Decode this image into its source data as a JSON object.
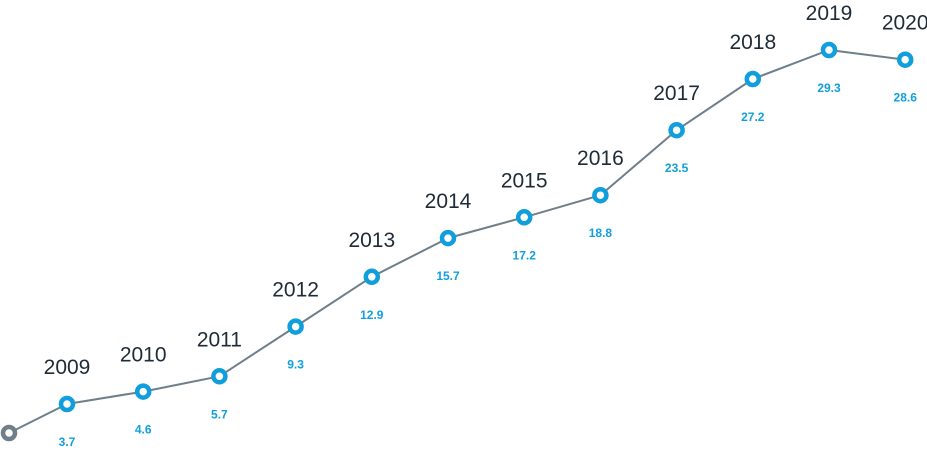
{
  "chart_data": {
    "type": "line",
    "title": "",
    "xlabel": "",
    "ylabel": "",
    "grid": false,
    "legend": "none",
    "x": [
      "2009",
      "2010",
      "2011",
      "2012",
      "2013",
      "2014",
      "2015",
      "2016",
      "2017",
      "2018",
      "2019",
      "2020"
    ],
    "values": [
      3.7,
      4.6,
      5.7,
      9.3,
      12.9,
      15.7,
      17.2,
      18.8,
      23.5,
      27.2,
      29.3,
      28.6
    ],
    "labels": [
      "3.7",
      "4.6",
      "5.7",
      "9.3",
      "12.9",
      "15.7",
      "17.2",
      "18.8",
      "23.5",
      "27.2",
      "29.3",
      "28.6"
    ],
    "colors": {
      "line": "#6f7f8a",
      "marker": "#109fdc",
      "start_marker": "#6f7f8a",
      "value_text": "#109fdc",
      "year_text": "#1f2b36"
    }
  }
}
